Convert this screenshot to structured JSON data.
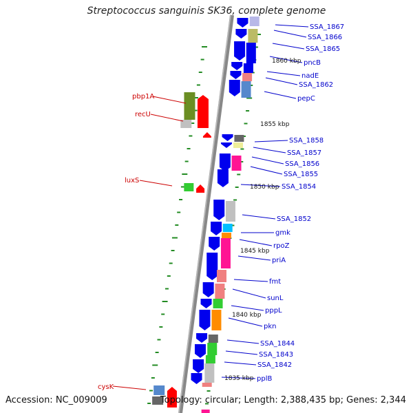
{
  "title": "Streptococcus sanguinis SK36, complete genome",
  "footer": {
    "accession": "Accession: NC_009009",
    "stats": "Topology: circular; Length: 2,388,435 bp; Genes: 2,344"
  },
  "colors": {
    "forward_gene": "#0000ee",
    "label_blue": "#0000cc",
    "label_red": "#cc0000",
    "backbone": "#888888",
    "tick": "#228b22"
  },
  "kbp_marks": [
    "1860 kbp",
    "1855 kbp",
    "1850 kbp",
    "1845 kbp",
    "1840 kbp",
    "1835 kbp"
  ],
  "right_labels": [
    "SSA_1867",
    "SSA_1866",
    "SSA_1865",
    "pncB",
    "nadE",
    "SSA_1862",
    "pepC",
    "SSA_1858",
    "SSA_1857",
    "SSA_1856",
    "SSA_1855",
    "SSA_1854",
    "SSA_1852",
    "gmk",
    "rpoZ",
    "priA",
    "fmt",
    "sunL",
    "pppL",
    "pkn",
    "SSA_1844",
    "SSA_1843",
    "SSA_1842",
    "pplB"
  ],
  "left_labels": [
    "pbp1A",
    "recU",
    "luxS",
    "cysK"
  ]
}
